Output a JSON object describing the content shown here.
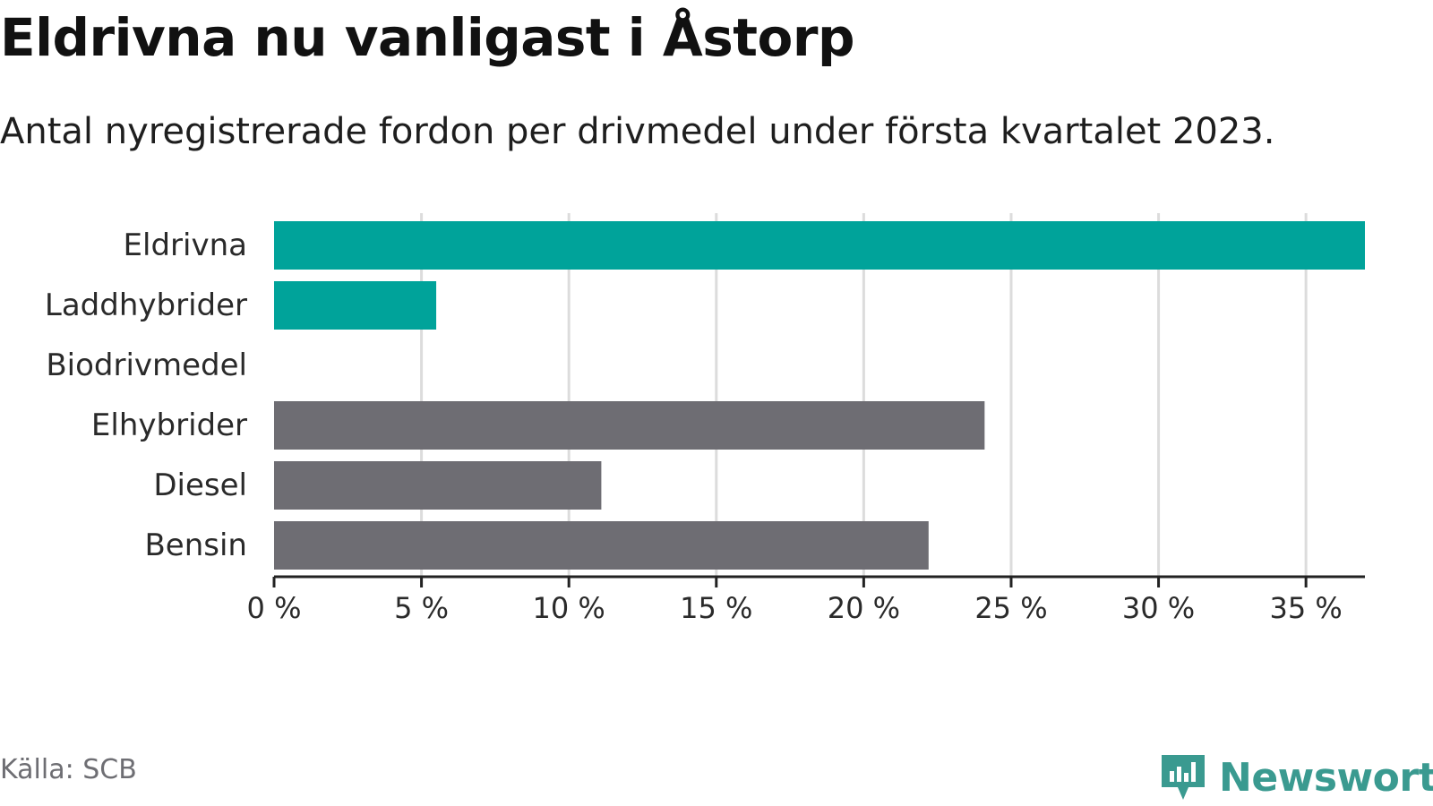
{
  "header": {
    "title": "Eldrivna nu vanligast i Åstorp",
    "subtitle": "Antal nyregistrerade fordon per drivmedel under första kvartalet 2023."
  },
  "footer": {
    "source": "Källa: SCB",
    "brand": "Newsworthy"
  },
  "colors": {
    "highlight": "#00a39a",
    "default": "#6e6d73",
    "grid": "#dcdcdc",
    "axis": "#222222",
    "brand": "#3a9a90"
  },
  "chart_data": {
    "type": "bar",
    "orientation": "horizontal",
    "categories": [
      "Eldrivna",
      "Laddhybrider",
      "Biodrivmedel",
      "Elhybrider",
      "Diesel",
      "Bensin"
    ],
    "values": [
      37.0,
      5.5,
      0.0,
      24.1,
      11.1,
      22.2
    ],
    "highlight": [
      true,
      true,
      false,
      false,
      false,
      false
    ],
    "xlim": [
      0,
      37
    ],
    "xticks": [
      0,
      5,
      10,
      15,
      20,
      25,
      30,
      35
    ],
    "xtick_labels": [
      "0 %",
      "5 %",
      "10 %",
      "15 %",
      "20 %",
      "25 %",
      "30 %",
      "35 %"
    ],
    "grid": true
  }
}
